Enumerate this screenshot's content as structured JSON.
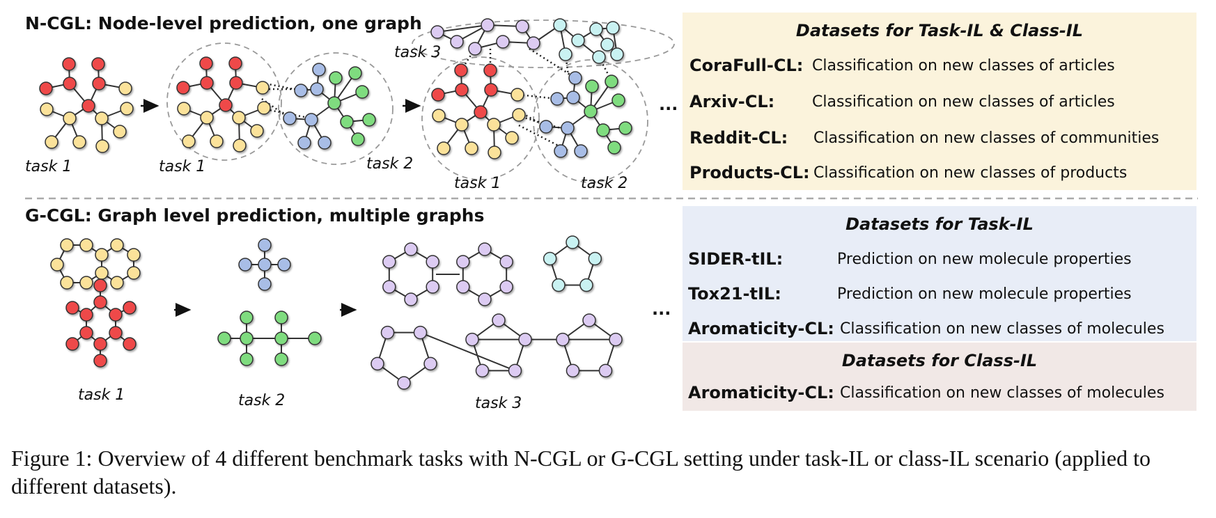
{
  "ncgl": {
    "title": "N-CGL: Node-level prediction, one graph",
    "task_labels": [
      "task 1",
      "task 1",
      "task 2",
      "task 3",
      "task 1",
      "task 2"
    ],
    "ellipsis": "..."
  },
  "gcgl": {
    "title": "G-CGL: Graph level prediction, multiple graphs",
    "task_labels": [
      "task 1",
      "task 2",
      "task 3"
    ],
    "ellipsis": "..."
  },
  "panels": {
    "task_class": {
      "heading": "Datasets for Task-IL & Class-IL",
      "rows": [
        {
          "name": "CoraFull-CL:",
          "desc": "Classification on new classes of articles"
        },
        {
          "name": "Arxiv-CL:",
          "desc": "Classification on new classes of articles"
        },
        {
          "name": "Reddit-CL:",
          "desc": "Classification on new classes of communities"
        },
        {
          "name": "Products-CL:",
          "desc": "Classification on new classes of products"
        }
      ]
    },
    "task_il": {
      "heading": "Datasets for Task-IL",
      "rows": [
        {
          "name": "SIDER-tIL:",
          "desc": "Prediction on new molecule properties"
        },
        {
          "name": "Tox21-tIL:",
          "desc": "Prediction on new molecule properties"
        },
        {
          "name": "Aromaticity-CL:",
          "desc": "Classification on new classes of molecules"
        }
      ]
    },
    "class_il": {
      "heading": "Datasets for Class-IL",
      "rows": [
        {
          "name": "Aromaticity-CL:",
          "desc": "Classification on new classes of molecules"
        }
      ]
    }
  },
  "caption": "Figure 1: Overview of 4 different benchmark tasks with N-CGL or G-CGL setting under task-IL or class-IL scenario (applied to different datasets).",
  "colors": {
    "red": "#ee4a4a",
    "yellow": "#fbe29a",
    "blue": "#a8bde6",
    "green": "#7fdc7f",
    "lavender": "#dccbf2",
    "cyan": "#c9f2f2",
    "panel_yellow": "#fbf3dc",
    "panel_blue": "#e8edf7",
    "panel_pink": "#f1e8e6"
  }
}
